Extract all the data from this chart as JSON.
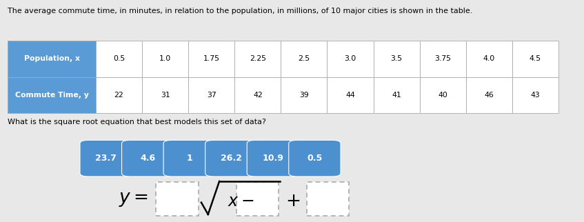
{
  "title": "The average commute time, in minutes, in relation to the population, in millions, of 10 major cities is shown in the table.",
  "table_header": [
    "Population, x",
    "0.5",
    "1.0",
    "1.75",
    "2.25",
    "2.5",
    "3.0",
    "3.5",
    "3.75",
    "4.0",
    "4.5"
  ],
  "table_row": [
    "Commute Time, y",
    "22",
    "31",
    "37",
    "42",
    "39",
    "44",
    "41",
    "40",
    "46",
    "43"
  ],
  "question": "What is the square root equation that best models this set of data?",
  "answer_chips": [
    "23.7",
    "4.6",
    "1",
    "26.2",
    "10.9",
    "0.5"
  ],
  "chip_color": "#4d90d0",
  "header_bg": "#5b9bd5",
  "header_text": "white",
  "row_bg": "white",
  "row_text": "black",
  "border_color": "#aaaaaa",
  "bg_color": "#e8e8e8",
  "table_outer_border": "#888888",
  "dashed_box_color": "#aaaaaa",
  "eq_text_color": "black"
}
